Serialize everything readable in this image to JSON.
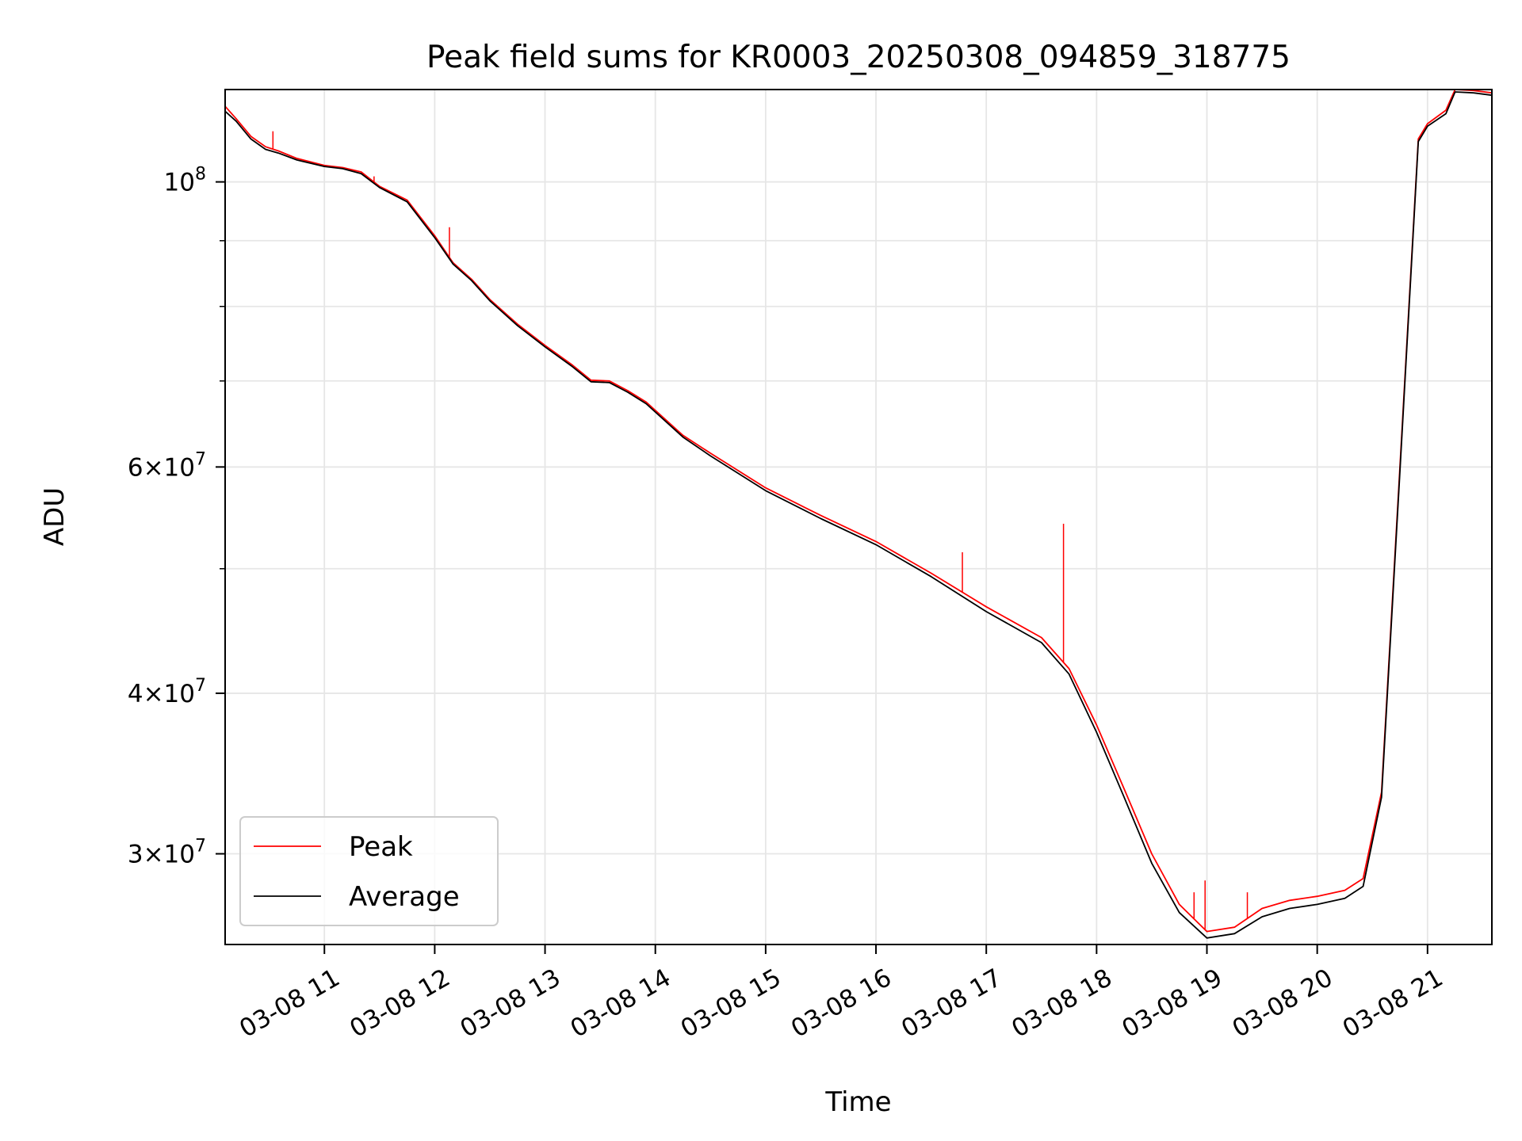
{
  "chart_data": {
    "type": "line",
    "title": "Peak field sums for KR0003_20250308_094859_318775",
    "xlabel": "Time",
    "ylabel": "ADU",
    "x_scale": "time",
    "y_scale": "log",
    "xlim": [
      "2025-03-08 10:06",
      "2025-03-08 21:35"
    ],
    "ylim": [
      25500000,
      118000000
    ],
    "x_ticks": [
      {
        "value": "2025-03-08 11:00",
        "label": "03-08 11"
      },
      {
        "value": "2025-03-08 12:00",
        "label": "03-08 12"
      },
      {
        "value": "2025-03-08 13:00",
        "label": "03-08 13"
      },
      {
        "value": "2025-03-08 14:00",
        "label": "03-08 14"
      },
      {
        "value": "2025-03-08 15:00",
        "label": "03-08 15"
      },
      {
        "value": "2025-03-08 16:00",
        "label": "03-08 16"
      },
      {
        "value": "2025-03-08 17:00",
        "label": "03-08 17"
      },
      {
        "value": "2025-03-08 18:00",
        "label": "03-08 18"
      },
      {
        "value": "2025-03-08 19:00",
        "label": "03-08 19"
      },
      {
        "value": "2025-03-08 20:00",
        "label": "03-08 20"
      },
      {
        "value": "2025-03-08 21:00",
        "label": "03-08 21"
      }
    ],
    "y_ticks_major": [
      {
        "value": 30000000,
        "base": "3",
        "exp": "7"
      },
      {
        "value": 40000000,
        "base": "4",
        "exp": "7"
      },
      {
        "value": 60000000,
        "base": "6",
        "exp": "7"
      },
      {
        "value": 100000000,
        "base": "",
        "exp": "8"
      }
    ],
    "y_ticks_minor": [
      50000000,
      70000000,
      80000000,
      90000000
    ],
    "grid": true,
    "legend": {
      "position": "lower-left"
    },
    "series": [
      {
        "name": "Peak",
        "color": "#ff0000",
        "x": [
          "2025-03-08 10:06",
          "2025-03-08 10:12",
          "2025-03-08 10:20",
          "2025-03-08 10:28",
          "2025-03-08 10:35",
          "2025-03-08 10:45",
          "2025-03-08 11:00",
          "2025-03-08 11:10",
          "2025-03-08 11:20",
          "2025-03-08 11:30",
          "2025-03-08 11:45",
          "2025-03-08 12:00",
          "2025-03-08 12:10",
          "2025-03-08 12:20",
          "2025-03-08 12:30",
          "2025-03-08 12:45",
          "2025-03-08 13:00",
          "2025-03-08 13:15",
          "2025-03-08 13:25",
          "2025-03-08 13:35",
          "2025-03-08 13:45",
          "2025-03-08 13:55",
          "2025-03-08 14:15",
          "2025-03-08 14:30",
          "2025-03-08 15:00",
          "2025-03-08 15:30",
          "2025-03-08 16:00",
          "2025-03-08 16:30",
          "2025-03-08 17:00",
          "2025-03-08 17:30",
          "2025-03-08 17:45",
          "2025-03-08 18:00",
          "2025-03-08 18:15",
          "2025-03-08 18:30",
          "2025-03-08 18:45",
          "2025-03-08 19:00",
          "2025-03-08 19:15",
          "2025-03-08 19:30",
          "2025-03-08 19:45",
          "2025-03-08 20:00",
          "2025-03-08 20:15",
          "2025-03-08 20:25",
          "2025-03-08 20:35",
          "2025-03-08 20:45",
          "2025-03-08 20:55",
          "2025-03-08 21:00",
          "2025-03-08 21:10",
          "2025-03-08 21:15",
          "2025-03-08 21:25",
          "2025-03-08 21:35"
        ],
        "y": [
          114500000,
          112000000,
          108500000,
          106500000,
          105700000,
          104300000,
          103000000,
          102600000,
          101800000,
          99200000,
          96800000,
          90800000,
          86500000,
          84000000,
          81000000,
          77500000,
          74600000,
          72000000,
          70100000,
          70000000,
          68800000,
          67400000,
          63500000,
          61500000,
          57800000,
          55000000,
          52500000,
          49600000,
          46700000,
          44200000,
          41800000,
          37800000,
          33700000,
          30000000,
          27400000,
          26100000,
          26300000,
          27200000,
          27600000,
          27800000,
          28100000,
          28700000,
          33500000,
          60000000,
          108000000,
          111000000,
          113700000,
          118000000,
          117800000,
          117300000
        ],
        "spikes": [
          {
            "x": "2025-03-08 10:32",
            "y": 109500000
          },
          {
            "x": "2025-03-08 11:27",
            "y": 101000000
          },
          {
            "x": "2025-03-08 12:08",
            "y": 92200000
          },
          {
            "x": "2025-03-08 16:47",
            "y": 51500000
          },
          {
            "x": "2025-03-08 17:42",
            "y": 54200000
          },
          {
            "x": "2025-03-08 18:53",
            "y": 28000000
          },
          {
            "x": "2025-03-08 18:59",
            "y": 28600000
          },
          {
            "x": "2025-03-08 19:22",
            "y": 28000000
          }
        ]
      },
      {
        "name": "Average",
        "color": "#000000",
        "x": [
          "2025-03-08 10:06",
          "2025-03-08 10:12",
          "2025-03-08 10:20",
          "2025-03-08 10:28",
          "2025-03-08 10:35",
          "2025-03-08 10:45",
          "2025-03-08 11:00",
          "2025-03-08 11:10",
          "2025-03-08 11:20",
          "2025-03-08 11:30",
          "2025-03-08 11:45",
          "2025-03-08 12:00",
          "2025-03-08 12:10",
          "2025-03-08 12:20",
          "2025-03-08 12:30",
          "2025-03-08 12:45",
          "2025-03-08 13:00",
          "2025-03-08 13:15",
          "2025-03-08 13:25",
          "2025-03-08 13:35",
          "2025-03-08 13:45",
          "2025-03-08 13:55",
          "2025-03-08 14:15",
          "2025-03-08 14:30",
          "2025-03-08 15:00",
          "2025-03-08 15:30",
          "2025-03-08 16:00",
          "2025-03-08 16:30",
          "2025-03-08 17:00",
          "2025-03-08 17:30",
          "2025-03-08 17:45",
          "2025-03-08 18:00",
          "2025-03-08 18:15",
          "2025-03-08 18:30",
          "2025-03-08 18:45",
          "2025-03-08 19:00",
          "2025-03-08 19:15",
          "2025-03-08 19:30",
          "2025-03-08 19:45",
          "2025-03-08 20:00",
          "2025-03-08 20:15",
          "2025-03-08 20:25",
          "2025-03-08 20:35",
          "2025-03-08 20:45",
          "2025-03-08 20:55",
          "2025-03-08 21:00",
          "2025-03-08 21:10",
          "2025-03-08 21:15",
          "2025-03-08 21:25",
          "2025-03-08 21:35"
        ],
        "y": [
          113500000,
          111500000,
          108000000,
          106000000,
          105300000,
          104000000,
          102800000,
          102400000,
          101500000,
          99000000,
          96500000,
          90500000,
          86300000,
          83800000,
          80800000,
          77300000,
          74400000,
          71800000,
          69900000,
          69800000,
          68600000,
          67200000,
          63300000,
          61200000,
          57500000,
          54700000,
          52200000,
          49300000,
          46300000,
          43800000,
          41400000,
          37300000,
          33200000,
          29500000,
          27000000,
          25800000,
          26000000,
          26800000,
          27200000,
          27400000,
          27700000,
          28300000,
          33200000,
          59500000,
          107500000,
          110500000,
          113000000,
          117500000,
          117300000,
          116800000
        ]
      }
    ]
  }
}
